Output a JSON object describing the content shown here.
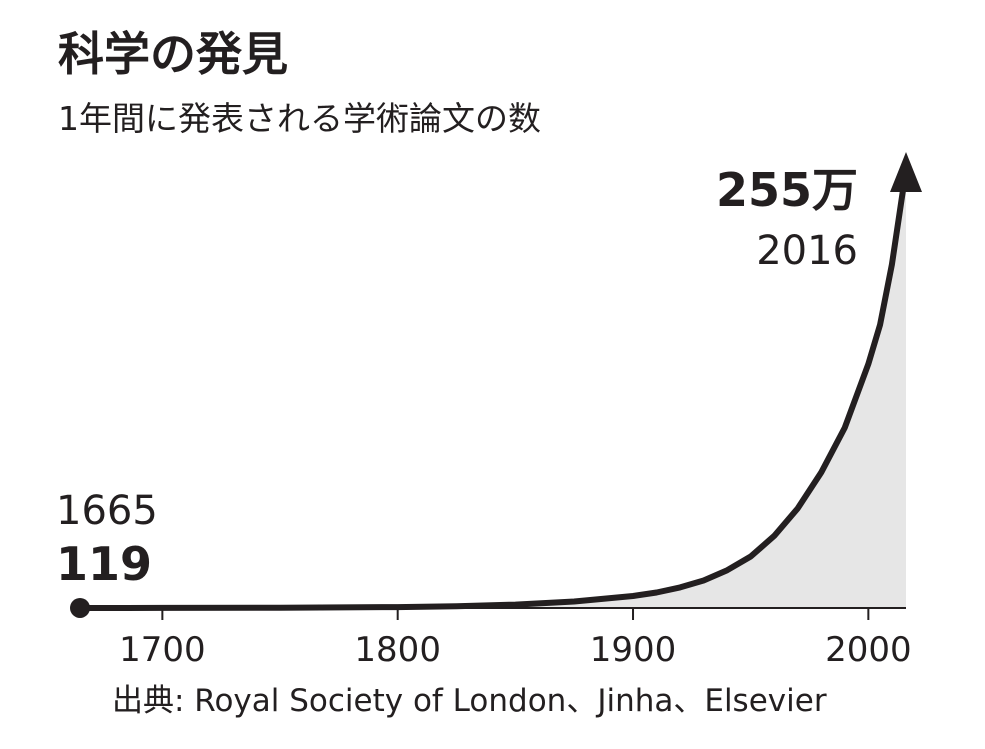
{
  "chart_data": {
    "type": "area",
    "title": "科学の発見",
    "subtitle": "1年間に発表される学術論文の数",
    "x": [
      1665,
      1700,
      1750,
      1800,
      1825,
      1850,
      1875,
      1900,
      1910,
      1920,
      1930,
      1940,
      1950,
      1960,
      1970,
      1980,
      1990,
      2000,
      2005,
      2010,
      2016
    ],
    "y": [
      119,
      300,
      1500,
      5000,
      10000,
      20000,
      38000,
      70000,
      90000,
      120000,
      160000,
      220000,
      300000,
      420000,
      580000,
      790000,
      1050000,
      1420000,
      1650000,
      2000000,
      2550000
    ],
    "xlabel": "",
    "ylabel": "",
    "xlim": [
      1665,
      2016
    ],
    "xticks": [
      "1700",
      "1800",
      "1900",
      "2000"
    ],
    "tick_values": [
      1700,
      1800,
      1900,
      2000
    ],
    "grid": false,
    "start_annotation": {
      "year": "1665",
      "value": "119"
    },
    "end_annotation": {
      "year": "2016",
      "value": "255万"
    },
    "source": "出典: Royal Society of London、Jinha、Elsevier",
    "colors": {
      "line": "#231f20",
      "fill": "#e6e6e6",
      "text": "#231f20"
    }
  }
}
